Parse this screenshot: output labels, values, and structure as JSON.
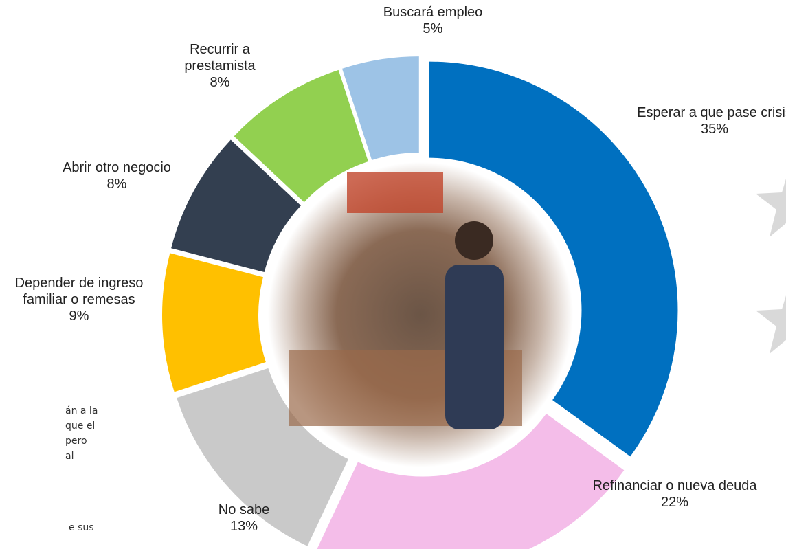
{
  "chart_data": {
    "type": "pie",
    "categories": [
      "Esperar a que pase crisis",
      "Refinanciar o nueva deuda",
      "No sabe",
      "Depender de ingreso familiar o remesas",
      "Abrir otro negocio",
      "Recurrir a prestamista",
      "Buscará empleo"
    ],
    "values": [
      35,
      22,
      13,
      9,
      8,
      8,
      5
    ],
    "value_labels": [
      "35%",
      "22%",
      "13%",
      "9%",
      "8%",
      "8%",
      "5%"
    ],
    "colors": [
      "#0070c0",
      "#f4bde9",
      "#c9c9c9",
      "#ffc000",
      "#333f50",
      "#92d050",
      "#9dc3e6"
    ]
  },
  "background_text": [
    "án a la",
    "que el",
    "pero",
    "al",
    "e sus"
  ]
}
